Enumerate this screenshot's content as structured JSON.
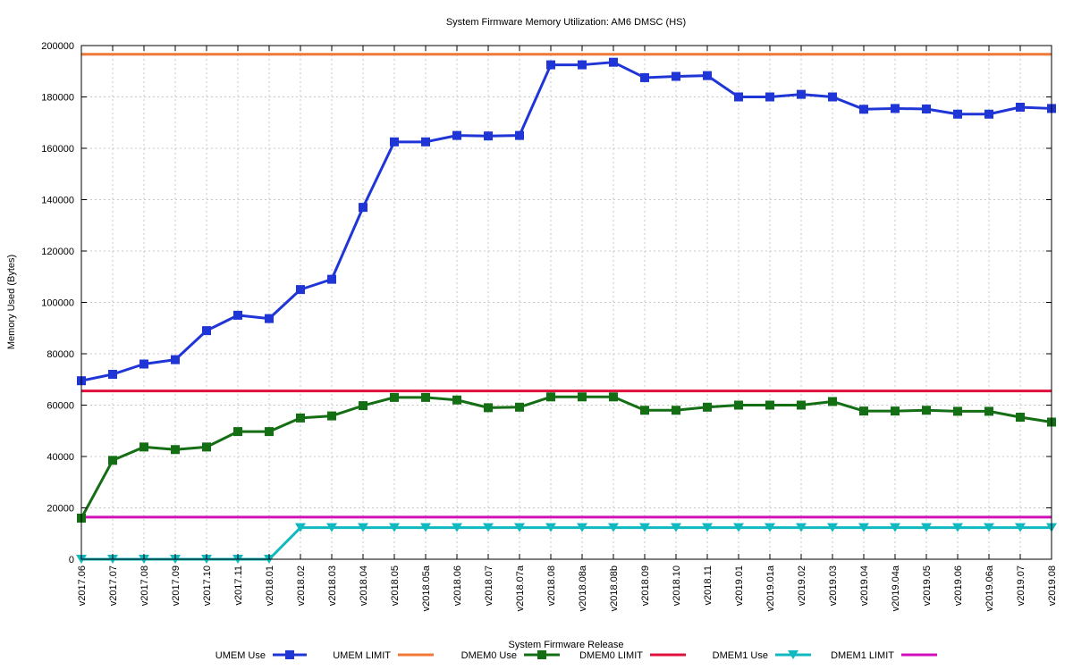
{
  "chart_data": {
    "type": "line",
    "title": "System Firmware Memory Utilization: AM6 DMSC (HS)",
    "xlabel": "System Firmware Release",
    "ylabel": "Memory Used (Bytes)",
    "ylim": [
      0,
      200000
    ],
    "yticks": [
      0,
      20000,
      40000,
      60000,
      80000,
      100000,
      120000,
      140000,
      160000,
      180000,
      200000
    ],
    "grid": true,
    "legend_position": "bottom",
    "categories": [
      "v2017.06",
      "v2017.07",
      "v2017.08",
      "v2017.09",
      "v2017.10",
      "v2017.11",
      "v2018.01",
      "v2018.02",
      "v2018.03",
      "v2018.04",
      "v2018.05",
      "v2018.05a",
      "v2018.06",
      "v2018.07",
      "v2018.07a",
      "v2018.08",
      "v2018.08a",
      "v2018.08b",
      "v2018.09",
      "v2018.10",
      "v2018.11",
      "v2019.01",
      "v2019.01a",
      "v2019.02",
      "v2019.03",
      "v2019.04",
      "v2019.04a",
      "v2019.05",
      "v2019.06",
      "v2019.06a",
      "v2019.07",
      "v2019.08"
    ],
    "series": [
      {
        "name": "UMEM Use",
        "color": "#1f35d6",
        "marker": "square",
        "values": [
          69500,
          72000,
          76000,
          77700,
          89000,
          95000,
          93700,
          105000,
          109000,
          137000,
          162500,
          162500,
          165000,
          164800,
          165000,
          192500,
          192500,
          193500,
          187500,
          188000,
          188300,
          180000,
          180000,
          181000,
          180000,
          175200,
          175500,
          175300,
          173300,
          173300,
          176000,
          175500
        ]
      },
      {
        "name": "UMEM LIMIT",
        "color": "#f07838",
        "marker": "none",
        "constant": 196608
      },
      {
        "name": "DMEM0 Use",
        "color": "#146e14",
        "marker": "square",
        "values": [
          16000,
          38500,
          43700,
          42700,
          43700,
          49700,
          49700,
          55000,
          55800,
          59800,
          63000,
          63000,
          62000,
          59000,
          59200,
          63200,
          63200,
          63200,
          58000,
          58000,
          59200,
          60000,
          60000,
          60000,
          61400,
          57700,
          57700,
          58000,
          57600,
          57600,
          55300,
          53400
        ]
      },
      {
        "name": "DMEM0 LIMIT",
        "color": "#e0103c",
        "marker": "none",
        "constant": 65536
      },
      {
        "name": "DMEM1 Use",
        "color": "#10b8c0",
        "marker": "triangle-down",
        "values": [
          0,
          0,
          0,
          0,
          0,
          0,
          0,
          12300,
          12300,
          12300,
          12300,
          12300,
          12300,
          12300,
          12300,
          12300,
          12300,
          12300,
          12300,
          12300,
          12300,
          12300,
          12300,
          12300,
          12300,
          12300,
          12300,
          12300,
          12300,
          12300,
          12300,
          12300
        ]
      },
      {
        "name": "DMEM1 LIMIT",
        "color": "#d010b8",
        "marker": "none",
        "constant": 16384
      }
    ]
  }
}
